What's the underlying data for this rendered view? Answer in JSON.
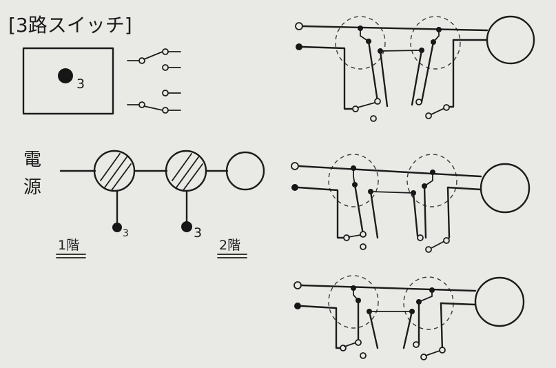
{
  "title": "[3路スイッチ]",
  "switch_plate_label": "3",
  "power_label_1": "電",
  "power_label_2": "源",
  "floor1_label": "1階",
  "floor2_label": "2階",
  "floor1_switch_label": "3",
  "floor2_switch_label": "3"
}
